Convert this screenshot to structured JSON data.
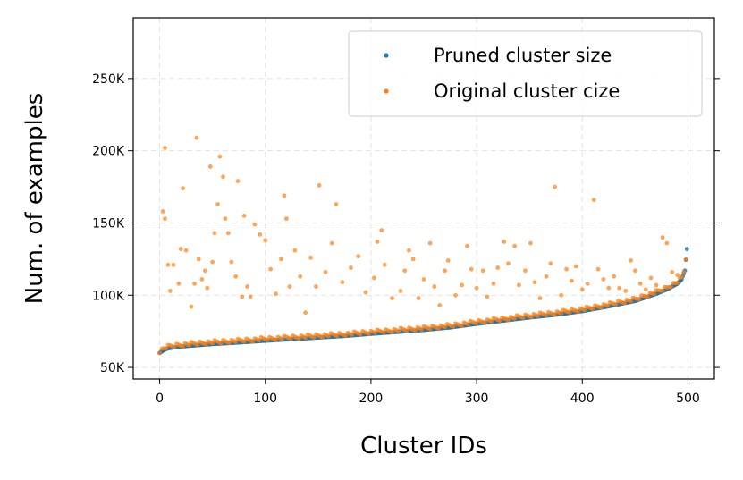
{
  "chart_data": {
    "type": "scatter",
    "xlabel": "Cluster IDs",
    "ylabel": "Num. of examples",
    "xlim": [
      -25,
      525
    ],
    "ylim": [
      42000,
      292000
    ],
    "x_ticks": [
      0,
      100,
      200,
      300,
      400,
      500
    ],
    "x_tick_labels": [
      "0",
      "100",
      "200",
      "300",
      "400",
      "500"
    ],
    "y_ticks": [
      50000,
      100000,
      150000,
      200000,
      250000
    ],
    "y_tick_labels": [
      "50K",
      "100K",
      "150K",
      "200K",
      "250K"
    ],
    "grid": true,
    "legend_position": "top-right",
    "n_clusters": 500,
    "series": [
      {
        "name": "Pruned cluster size",
        "color": "#1f77b4",
        "description_curve": "sorted ascending",
        "values": [
          [
            0,
            60000
          ],
          [
            5,
            62500
          ],
          [
            10,
            63500
          ],
          [
            25,
            64800
          ],
          [
            50,
            66200
          ],
          [
            75,
            67300
          ],
          [
            100,
            68500
          ],
          [
            125,
            69600
          ],
          [
            150,
            70700
          ],
          [
            175,
            71800
          ],
          [
            200,
            73300
          ],
          [
            225,
            74600
          ],
          [
            250,
            76000
          ],
          [
            275,
            77700
          ],
          [
            300,
            80200
          ],
          [
            325,
            82400
          ],
          [
            350,
            84600
          ],
          [
            375,
            86500
          ],
          [
            400,
            89000
          ],
          [
            425,
            92300
          ],
          [
            450,
            96000
          ],
          [
            470,
            101000
          ],
          [
            480,
            104000
          ],
          [
            490,
            108000
          ],
          [
            494,
            111000
          ],
          [
            497,
            117000
          ],
          [
            499,
            132000
          ]
        ]
      },
      {
        "name": "Original cluster cize",
        "color": "#ff7f0e",
        "baseline_follows": "Pruned cluster size",
        "outliers": [
          [
            3,
            158000
          ],
          [
            5,
            153000
          ],
          [
            5,
            202000
          ],
          [
            8,
            121000
          ],
          [
            10,
            103000
          ],
          [
            13,
            121000
          ],
          [
            18,
            108000
          ],
          [
            20,
            132000
          ],
          [
            22,
            174000
          ],
          [
            25,
            131000
          ],
          [
            30,
            92000
          ],
          [
            33,
            108000
          ],
          [
            35,
            209000
          ],
          [
            37,
            125000
          ],
          [
            40,
            111000
          ],
          [
            43,
            117000
          ],
          [
            45,
            105000
          ],
          [
            48,
            189000
          ],
          [
            50,
            123000
          ],
          [
            52,
            143000
          ],
          [
            55,
            163000
          ],
          [
            57,
            196000
          ],
          [
            60,
            182000
          ],
          [
            62,
            153000
          ],
          [
            65,
            143000
          ],
          [
            68,
            123000
          ],
          [
            72,
            113000
          ],
          [
            74,
            179000
          ],
          [
            78,
            99000
          ],
          [
            80,
            155000
          ],
          [
            83,
            106000
          ],
          [
            86,
            99000
          ],
          [
            90,
            149000
          ],
          [
            95,
            142000
          ],
          [
            100,
            138000
          ],
          [
            105,
            118000
          ],
          [
            110,
            101000
          ],
          [
            115,
            125000
          ],
          [
            118,
            169000
          ],
          [
            120,
            153000
          ],
          [
            123,
            106000
          ],
          [
            128,
            131000
          ],
          [
            133,
            113000
          ],
          [
            138,
            88000
          ],
          [
            143,
            126000
          ],
          [
            148,
            106000
          ],
          [
            151,
            176000
          ],
          [
            157,
            116000
          ],
          [
            163,
            136000
          ],
          [
            167,
            163000
          ],
          [
            173,
            109000
          ],
          [
            181,
            119000
          ],
          [
            188,
            127000
          ],
          [
            195,
            102000
          ],
          [
            203,
            112000
          ],
          [
            206,
            137000
          ],
          [
            210,
            145000
          ],
          [
            213,
            121000
          ],
          [
            220,
            98000
          ],
          [
            228,
            103000
          ],
          [
            232,
            117000
          ],
          [
            236,
            131000
          ],
          [
            240,
            125000
          ],
          [
            245,
            98000
          ],
          [
            250,
            111000
          ],
          [
            256,
            136000
          ],
          [
            260,
            106000
          ],
          [
            265,
            93000
          ],
          [
            270,
            117000
          ],
          [
            273,
            124000
          ],
          [
            280,
            100000
          ],
          [
            286,
            107000
          ],
          [
            291,
            134000
          ],
          [
            295,
            118000
          ],
          [
            300,
            105000
          ],
          [
            306,
            117000
          ],
          [
            310,
            99000
          ],
          [
            316,
            108000
          ],
          [
            320,
            119000
          ],
          [
            326,
            137000
          ],
          [
            330,
            122000
          ],
          [
            336,
            134000
          ],
          [
            340,
            107000
          ],
          [
            346,
            117000
          ],
          [
            351,
            136000
          ],
          [
            355,
            109000
          ],
          [
            360,
            98000
          ],
          [
            366,
            113000
          ],
          [
            370,
            122000
          ],
          [
            374,
            175000
          ],
          [
            380,
            100000
          ],
          [
            385,
            118000
          ],
          [
            390,
            110000
          ],
          [
            394,
            120000
          ],
          [
            400,
            104000
          ],
          [
            405,
            108000
          ],
          [
            411,
            166000
          ],
          [
            415,
            118000
          ],
          [
            420,
            111000
          ],
          [
            425,
            105000
          ],
          [
            430,
            113000
          ],
          [
            435,
            105000
          ],
          [
            441,
            103000
          ],
          [
            446,
            124000
          ],
          [
            450,
            117000
          ],
          [
            455,
            108000
          ],
          [
            460,
            104000
          ],
          [
            465,
            112000
          ],
          [
            470,
            107000
          ],
          [
            476,
            140000
          ],
          [
            480,
            136000
          ],
          [
            485,
            116000
          ],
          [
            490,
            114000
          ]
        ]
      }
    ]
  }
}
